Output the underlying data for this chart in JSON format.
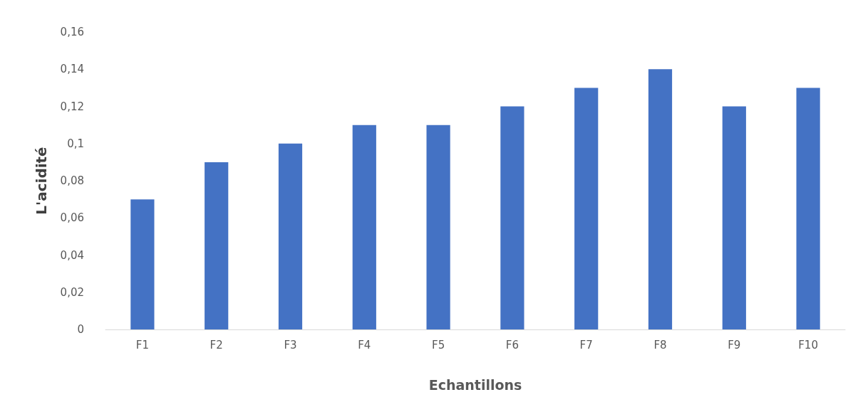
{
  "chart_data": {
    "type": "bar",
    "xlabel": "Echantillons",
    "ylabel": "L'acidité",
    "categories": [
      "F1",
      "F2",
      "F3",
      "F4",
      "F5",
      "F6",
      "F7",
      "F8",
      "F9",
      "F10"
    ],
    "values": [
      0.07,
      0.09,
      0.1,
      0.11,
      0.11,
      0.12,
      0.13,
      0.14,
      0.12,
      0.13
    ],
    "color": "#4472c4",
    "ylim": [
      0,
      0.16
    ],
    "yticks": [
      0,
      {
        "value": 0.02,
        "label": "0,02"
      },
      {
        "value": 0.04,
        "label": "0,04"
      },
      {
        "value": 0.06,
        "label": "0,06"
      },
      {
        "value": 0.08,
        "label": "0,08"
      },
      {
        "value": 0.1,
        "label": "0,1"
      },
      {
        "value": 0.12,
        "label": "0,12"
      },
      {
        "value": 0.14,
        "label": "0,14"
      },
      {
        "value": 0.16,
        "label": "0,16"
      }
    ],
    "grid": false
  }
}
